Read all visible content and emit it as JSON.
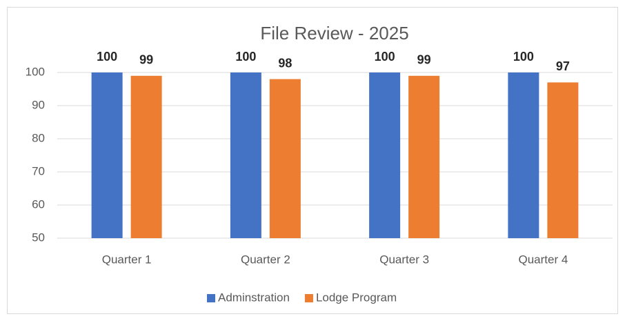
{
  "chart_data": {
    "type": "bar",
    "title": "File Review - 2025",
    "categories": [
      "Quarter 1",
      "Quarter 2",
      "Quarter 3",
      "Quarter 4"
    ],
    "series": [
      {
        "name": "Adminstration",
        "color": "#4472c4",
        "values": [
          100,
          100,
          100,
          100
        ]
      },
      {
        "name": "Lodge Program",
        "color": "#ed7d31",
        "values": [
          99,
          98,
          99,
          97
        ]
      }
    ],
    "ylim": [
      50,
      100
    ],
    "yticks": [
      50,
      60,
      70,
      80,
      90,
      100
    ],
    "grid": true,
    "legend": "bottom"
  }
}
